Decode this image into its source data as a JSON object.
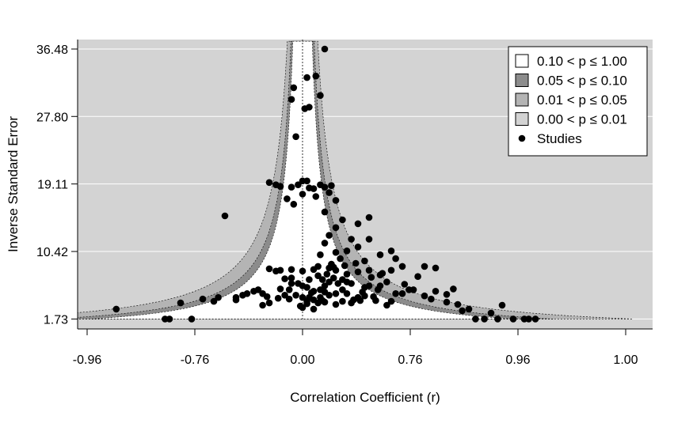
{
  "chart_data": {
    "type": "scatter",
    "subtype": "contour-enhanced funnel plot",
    "xlabel": "Correlation Coefficient (r)",
    "ylabel": "Inverse Standard Error",
    "x_tick_labels": [
      "-0.96",
      "-0.76",
      "0.00",
      "0.76",
      "0.96",
      "1.00"
    ],
    "y_ticks": [
      1.73,
      10.42,
      19.11,
      27.8,
      36.48
    ],
    "y_tick_labels": [
      "1.73",
      "10.42",
      "19.11",
      "27.80",
      "36.48"
    ],
    "ylim": [
      0.45,
      37.7
    ],
    "grid": "horizontal",
    "legend_position": "top-right",
    "center_value": 0.0,
    "legend": [
      {
        "label": "0.10 < p ≤ 1.00",
        "swatch": "#ffffff"
      },
      {
        "label": "0.05 < p ≤ 0.10",
        "swatch": "#8c8c8c"
      },
      {
        "label": "0.01 < p ≤ 0.05",
        "swatch": "#b4b4b4"
      },
      {
        "label": "0.00 < p ≤ 0.01",
        "swatch": "#d3d3d3"
      },
      {
        "label": "Studies",
        "marker": "circle"
      }
    ],
    "colors": {
      "background": "#d3d3d3",
      "region_p_10_100": "#ffffff",
      "region_p_05_10": "#8c8c8c",
      "region_p_01_05": "#b4b4b4",
      "points": "#000000"
    },
    "points": [
      [
        -0.84,
        3.0
      ],
      [
        -0.62,
        1.73
      ],
      [
        -0.6,
        1.73
      ],
      [
        -0.5,
        1.73
      ],
      [
        -0.55,
        3.8
      ],
      [
        -0.45,
        4.3
      ],
      [
        -0.38,
        4.5
      ],
      [
        -0.3,
        4.5
      ],
      [
        -0.25,
        5.0
      ],
      [
        -0.22,
        5.3
      ],
      [
        -0.18,
        5.0
      ],
      [
        -0.1,
        5.6
      ],
      [
        -0.06,
        5.5
      ],
      [
        -0.05,
        6.3
      ],
      [
        -0.02,
        6.3
      ],
      [
        0.0,
        6.0
      ],
      [
        0.02,
        5.8
      ],
      [
        -0.08,
        6.9
      ],
      [
        -0.05,
        7.0
      ],
      [
        0.03,
        6.8
      ],
      [
        -0.12,
        7.9
      ],
      [
        -0.1,
        8.0
      ],
      [
        -0.15,
        8.2
      ],
      [
        -0.05,
        8.1
      ],
      [
        0.0,
        7.9
      ],
      [
        0.05,
        8.1
      ],
      [
        0.07,
        8.5
      ],
      [
        0.12,
        8.3
      ],
      [
        0.15,
        8.0
      ],
      [
        0.2,
        7.5
      ],
      [
        0.25,
        7.8
      ],
      [
        0.3,
        8.0
      ],
      [
        0.35,
        7.4
      ],
      [
        0.4,
        8.0
      ],
      [
        0.45,
        8.5
      ],
      [
        0.55,
        8.5
      ],
      [
        0.6,
        8.3
      ],
      [
        0.2,
        6.5
      ],
      [
        0.22,
        6.3
      ],
      [
        0.3,
        6.0
      ],
      [
        0.35,
        6.0
      ],
      [
        0.38,
        6.5
      ],
      [
        0.42,
        5.0
      ],
      [
        0.45,
        5.0
      ],
      [
        0.48,
        5.5
      ],
      [
        0.5,
        5.5
      ],
      [
        0.55,
        4.7
      ],
      [
        0.58,
        4.3
      ],
      [
        0.65,
        3.9
      ],
      [
        0.7,
        3.6
      ],
      [
        0.72,
        2.8
      ],
      [
        0.75,
        3.0
      ],
      [
        0.78,
        1.73
      ],
      [
        0.82,
        1.73
      ],
      [
        0.85,
        2.5
      ],
      [
        0.9,
        3.5
      ],
      [
        0.95,
        1.73
      ],
      [
        0.88,
        1.73
      ],
      [
        1.0,
        1.73
      ],
      [
        1.02,
        1.73
      ],
      [
        1.05,
        1.73
      ],
      [
        0.1,
        6.0
      ],
      [
        0.12,
        6.5
      ],
      [
        0.14,
        7.0
      ],
      [
        0.16,
        6.3
      ],
      [
        0.18,
        6.8
      ],
      [
        0.15,
        5.0
      ],
      [
        0.1,
        5.2
      ],
      [
        0.05,
        5.3
      ],
      [
        0.08,
        4.5
      ],
      [
        0.12,
        4.8
      ],
      [
        0.18,
        5.5
      ],
      [
        0.2,
        5.0
      ],
      [
        0.25,
        4.5
      ],
      [
        0.28,
        4.7
      ],
      [
        0.32,
        4.6
      ],
      [
        0.27,
        5.2
      ],
      [
        0.4,
        4.0
      ],
      [
        0.38,
        3.5
      ],
      [
        0.22,
        3.8
      ],
      [
        0.15,
        3.6
      ],
      [
        0.1,
        3.9
      ],
      [
        0.05,
        4.2
      ],
      [
        0.0,
        4.5
      ],
      [
        -0.03,
        4.8
      ],
      [
        -0.15,
        3.8
      ],
      [
        -0.18,
        3.5
      ],
      [
        0.0,
        3.2
      ],
      [
        0.05,
        3.0
      ],
      [
        0.02,
        4.0
      ],
      [
        0.07,
        3.8
      ],
      [
        0.08,
        5.5
      ],
      [
        0.09,
        6.8
      ],
      [
        0.11,
        7.5
      ],
      [
        0.13,
        8.8
      ],
      [
        0.17,
        9.5
      ],
      [
        0.15,
        10.3
      ],
      [
        0.2,
        10.5
      ],
      [
        0.25,
        11.0
      ],
      [
        0.22,
        12.0
      ],
      [
        0.08,
        10.0
      ],
      [
        0.1,
        11.5
      ],
      [
        0.12,
        12.5
      ],
      [
        0.15,
        13.5
      ],
      [
        0.18,
        14.5
      ],
      [
        0.25,
        14.0
      ],
      [
        0.3,
        14.8
      ],
      [
        0.3,
        12.0
      ],
      [
        0.35,
        10.0
      ],
      [
        0.4,
        10.5
      ],
      [
        0.42,
        9.5
      ],
      [
        0.28,
        9.2
      ],
      [
        -0.35,
        15.0
      ],
      [
        0.1,
        15.5
      ],
      [
        0.15,
        17.0
      ],
      [
        0.05,
        18.5
      ],
      [
        0.08,
        19.0
      ],
      [
        0.02,
        19.5
      ],
      [
        0.0,
        19.5
      ],
      [
        -0.02,
        19.0
      ],
      [
        -0.05,
        18.7
      ],
      [
        -0.1,
        18.8
      ],
      [
        -0.12,
        19.0
      ],
      [
        0.03,
        18.6
      ],
      [
        0.1,
        18.7
      ],
      [
        0.13,
        18.9
      ],
      [
        0.12,
        18.0
      ],
      [
        0.06,
        17.5
      ],
      [
        0.0,
        17.8
      ],
      [
        -0.04,
        16.5
      ],
      [
        -0.07,
        17.2
      ],
      [
        -0.15,
        19.3
      ],
      [
        -0.03,
        25.2
      ],
      [
        0.01,
        28.8
      ],
      [
        -0.05,
        30.0
      ],
      [
        -0.04,
        31.5
      ],
      [
        0.03,
        29.0
      ],
      [
        0.06,
        33.0
      ],
      [
        0.08,
        30.5
      ],
      [
        0.02,
        32.8
      ],
      [
        0.1,
        36.48
      ],
      [
        -0.3,
        4.2
      ],
      [
        -0.27,
        4.8
      ],
      [
        -0.2,
        5.5
      ],
      [
        -0.08,
        4.8
      ],
      [
        -0.11,
        4.4
      ],
      [
        0.03,
        4.5
      ],
      [
        0.09,
        4.1
      ],
      [
        -0.06,
        4.3
      ],
      [
        0.04,
        5.1
      ],
      [
        0.26,
        4.1
      ],
      [
        0.33,
        4.1
      ],
      [
        -0.01,
        3.4
      ],
      [
        0.02,
        3.7
      ],
      [
        -0.16,
        4.6
      ],
      [
        0.07,
        7.3
      ],
      [
        0.14,
        8.4
      ],
      [
        0.19,
        8.6
      ],
      [
        0.24,
        8.9
      ],
      [
        0.31,
        7.1
      ],
      [
        0.36,
        7.6
      ],
      [
        0.46,
        6.2
      ],
      [
        0.52,
        7.2
      ],
      [
        0.65,
        4.9
      ],
      [
        0.68,
        5.6
      ],
      [
        -0.4,
        4.0
      ],
      [
        0.6,
        5.3
      ],
      [
        0.18,
        4.0
      ],
      [
        0.23,
        4.2
      ],
      [
        0.28,
        5.8
      ],
      [
        0.34,
        5.5
      ]
    ]
  }
}
